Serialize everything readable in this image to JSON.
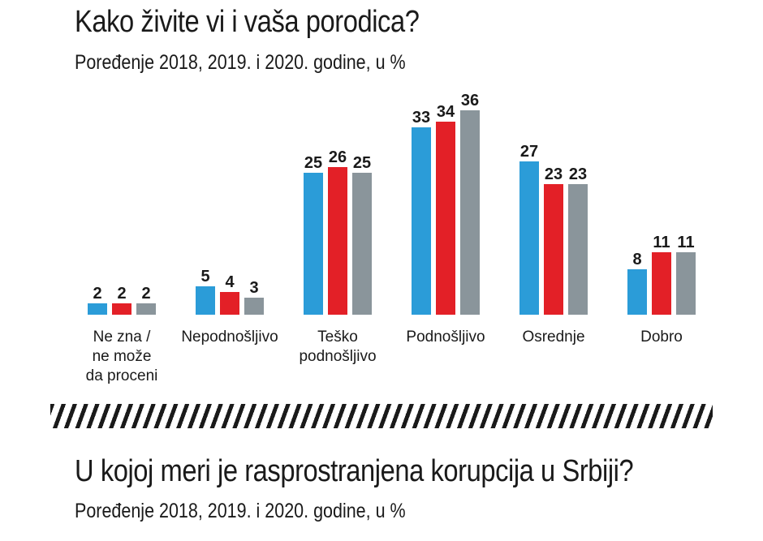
{
  "chart_data": {
    "type": "bar",
    "title": "Kako živite vi i vaša porodica?",
    "subtitle": "Poređenje 2018, 2019. i 2020. godine, u %",
    "categories": [
      [
        "Ne zna /",
        "ne može",
        "da proceni"
      ],
      [
        "Nepodnošljivo"
      ],
      [
        "Teško",
        "podnošljivo"
      ],
      [
        "Podnošljivo"
      ],
      [
        "Osrednje"
      ],
      [
        "Dobro"
      ]
    ],
    "series": [
      {
        "values": [
          2,
          5,
          25,
          33,
          27,
          8
        ]
      },
      {
        "values": [
          2,
          4,
          26,
          34,
          23,
          11
        ]
      },
      {
        "values": [
          2,
          3,
          25,
          36,
          23,
          11
        ]
      }
    ],
    "colors": [
      "#2b9cd8",
      "#e32027",
      "#8a959b"
    ],
    "ylim": [
      0,
      36
    ],
    "grid": false,
    "legend": "none"
  },
  "next_section": {
    "title": "U kojoj meri je rasprostranjena korupcija u Srbiji?",
    "subtitle": "Poređenje 2018, 2019. i 2020. godine, u %"
  }
}
